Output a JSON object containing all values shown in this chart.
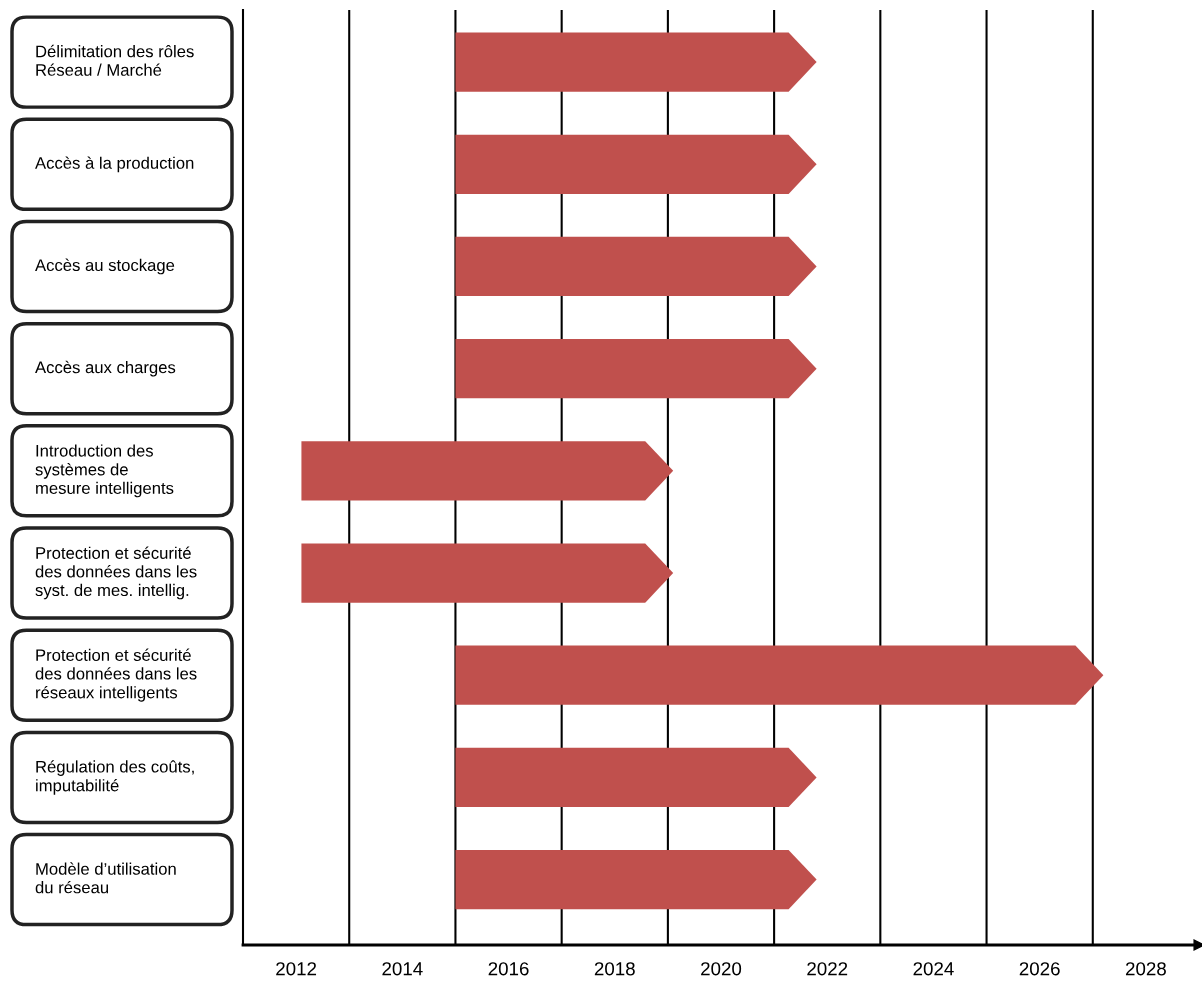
{
  "chart_data": {
    "type": "bar",
    "orientation": "horizontal",
    "categories": [
      "Délimitation des rôles\nRéseau / Marché",
      "Accès à la production",
      "Accès au stockage",
      "Accès aux charges",
      "Introduction des\nsystèmes de\nmesure intelligents",
      "Protection et sécurité\ndes données dans les\nsyst. de mes. intellig.",
      "Protection et sécurité\ndes données dans les\nréseaux intelligents",
      "Régulation des coûts,\nimputabilité",
      "Modèle d’utilisation\ndu réseau"
    ],
    "base": [
      2015,
      2015,
      2015,
      2015,
      2012.1,
      2012.1,
      2015,
      2015,
      2015
    ],
    "values": [
      6.8,
      6.8,
      6.8,
      6.8,
      7,
      7,
      12.2,
      6.8,
      6.8
    ],
    "color": "#c0504d",
    "xlim": [
      2011,
      2029
    ],
    "xticks": [
      2012,
      2014,
      2016,
      2018,
      2020,
      2022,
      2024,
      2026,
      2028
    ],
    "ref_lines": [
      {
        "axis": "x",
        "value": 2013,
        "color": "#000000"
      },
      {
        "axis": "x",
        "value": 2015,
        "color": "#000000"
      },
      {
        "axis": "x",
        "value": 2017,
        "color": "#000000"
      },
      {
        "axis": "x",
        "value": 2019,
        "color": "#000000"
      },
      {
        "axis": "x",
        "value": 2021,
        "color": "#000000"
      },
      {
        "axis": "x",
        "value": 2023,
        "color": "#000000"
      },
      {
        "axis": "x",
        "value": 2025,
        "color": "#000000"
      },
      {
        "axis": "x",
        "value": 2027,
        "color": "#000000"
      }
    ],
    "grid": false
  }
}
